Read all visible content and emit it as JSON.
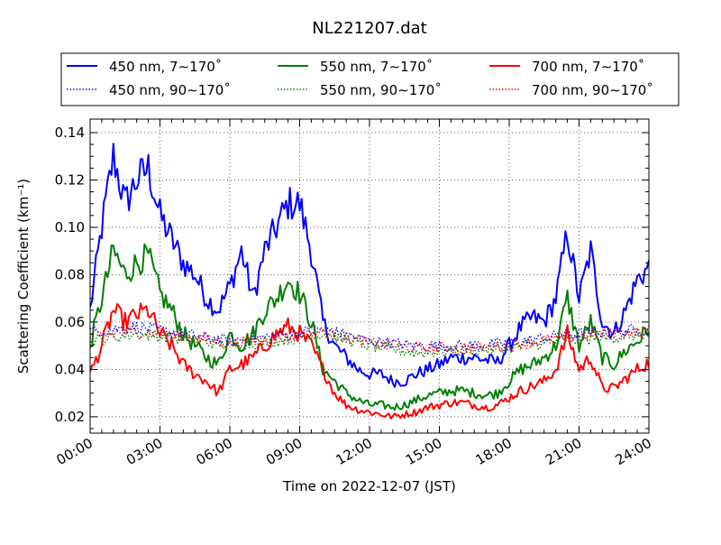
{
  "chart_data": {
    "type": "line",
    "title": "NL221207.dat",
    "xlabel": "Time on 2022-12-07 (JST)",
    "ylabel": "Scattering Coefficient (km⁻¹)",
    "xlim": [
      0,
      24
    ],
    "ylim": [
      0.0131,
      0.1457
    ],
    "grid": true,
    "legend_placement": "top, above plot, 3 columns",
    "x_ticks": [
      0,
      3,
      6,
      9,
      12,
      15,
      18,
      21,
      24
    ],
    "x_tick_labels": [
      "00:00",
      "03:00",
      "06:00",
      "09:00",
      "12:00",
      "15:00",
      "18:00",
      "21:00",
      "24:00"
    ],
    "y_ticks": [
      0.02,
      0.04,
      0.06,
      0.08,
      0.1,
      0.12,
      0.14
    ],
    "y_tick_labels": [
      "0.02",
      "0.04",
      "0.06",
      "0.08",
      "0.10",
      "0.12",
      "0.14"
    ],
    "x_step_solid_hours": 0.5,
    "x_step_dotted_hours": 2,
    "series": [
      {
        "name": "450 nm, 7∼170˚",
        "color": "#0000ff",
        "style": "solid",
        "values": [
          0.065,
          0.1,
          0.13,
          0.11,
          0.12,
          0.125,
          0.105,
          0.095,
          0.085,
          0.08,
          0.07,
          0.065,
          0.075,
          0.09,
          0.07,
          0.09,
          0.1,
          0.11,
          0.11,
          0.09,
          0.06,
          0.05,
          0.045,
          0.04,
          0.038,
          0.038,
          0.035,
          0.035,
          0.038,
          0.04,
          0.042,
          0.045,
          0.045,
          0.045,
          0.044,
          0.043,
          0.05,
          0.058,
          0.062,
          0.06,
          0.07,
          0.098,
          0.07,
          0.09,
          0.06,
          0.055,
          0.065,
          0.078,
          0.083
        ]
      },
      {
        "name": "550 nm, 7∼170˚",
        "color": "#008000",
        "style": "solid",
        "values": [
          0.05,
          0.07,
          0.09,
          0.08,
          0.085,
          0.088,
          0.072,
          0.065,
          0.055,
          0.05,
          0.045,
          0.042,
          0.055,
          0.05,
          0.055,
          0.065,
          0.07,
          0.078,
          0.072,
          0.06,
          0.04,
          0.035,
          0.03,
          0.027,
          0.025,
          0.025,
          0.024,
          0.025,
          0.027,
          0.029,
          0.03,
          0.031,
          0.031,
          0.03,
          0.029,
          0.03,
          0.035,
          0.04,
          0.042,
          0.045,
          0.05,
          0.07,
          0.05,
          0.06,
          0.045,
          0.042,
          0.048,
          0.052,
          0.057
        ]
      },
      {
        "name": "700 nm, 7∼170˚",
        "color": "#ff0000",
        "style": "solid",
        "values": [
          0.038,
          0.05,
          0.065,
          0.06,
          0.063,
          0.065,
          0.055,
          0.05,
          0.042,
          0.038,
          0.035,
          0.03,
          0.04,
          0.042,
          0.045,
          0.05,
          0.055,
          0.058,
          0.055,
          0.05,
          0.04,
          0.03,
          0.025,
          0.023,
          0.022,
          0.021,
          0.02,
          0.021,
          0.022,
          0.024,
          0.025,
          0.026,
          0.026,
          0.025,
          0.024,
          0.025,
          0.028,
          0.031,
          0.033,
          0.035,
          0.04,
          0.055,
          0.04,
          0.045,
          0.032,
          0.032,
          0.036,
          0.04,
          0.043
        ]
      },
      {
        "name": "450 nm, 90∼170˚",
        "color": "#0000ff",
        "style": "dotted",
        "values": [
          0.056,
          0.058,
          0.055,
          0.052,
          0.054,
          0.057,
          0.052,
          0.05,
          0.05,
          0.051,
          0.054,
          0.056,
          0.057
        ]
      },
      {
        "name": "550 nm, 90∼170˚",
        "color": "#008000",
        "style": "dotted",
        "values": [
          0.052,
          0.055,
          0.053,
          0.05,
          0.052,
          0.055,
          0.05,
          0.047,
          0.048,
          0.049,
          0.052,
          0.053,
          0.055
        ]
      },
      {
        "name": "700 nm, 90∼170˚",
        "color": "#ff0000",
        "style": "dotted",
        "values": [
          0.054,
          0.056,
          0.054,
          0.051,
          0.053,
          0.056,
          0.051,
          0.049,
          0.049,
          0.05,
          0.053,
          0.055,
          0.056
        ]
      }
    ]
  }
}
